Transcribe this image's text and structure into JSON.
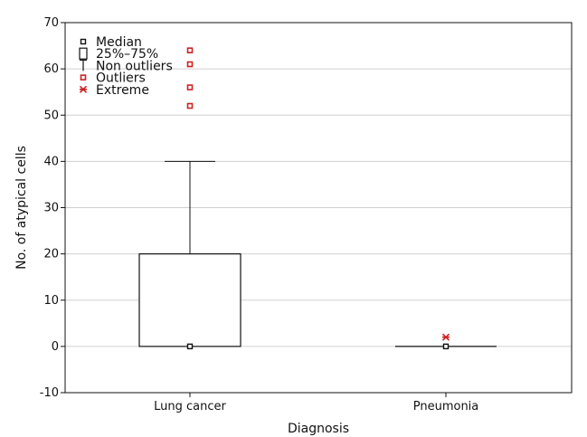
{
  "chart_data": {
    "type": "box",
    "xlabel": "Diagnosis",
    "ylabel": "No. of atypical cells",
    "ylim": [
      -10,
      70
    ],
    "yticks": [
      -10,
      0,
      10,
      20,
      30,
      40,
      50,
      60,
      70
    ],
    "grid": true,
    "legend": {
      "placement": "top-left",
      "items": [
        {
          "symbol": "median",
          "label": "Median"
        },
        {
          "symbol": "box",
          "label": "25%–75%"
        },
        {
          "symbol": "whisker",
          "label": "Non outliers"
        },
        {
          "symbol": "outlier",
          "label": "Outliers"
        },
        {
          "symbol": "extreme",
          "label": "Extreme"
        }
      ]
    },
    "categories": [
      "Lung cancer",
      "Pneumonia"
    ],
    "boxes": [
      {
        "category": "Lung cancer",
        "median": 0,
        "q1": 0,
        "q3": 20,
        "whisker_low": 0,
        "whisker_high": 40,
        "outliers": [
          52,
          56,
          61,
          64
        ],
        "extremes": []
      },
      {
        "category": "Pneumonia",
        "median": 0,
        "q1": 0,
        "q3": 0,
        "whisker_low": 0,
        "whisker_high": 0,
        "outliers": [],
        "extremes": [
          2
        ]
      }
    ],
    "colors": {
      "outlier": "#cc2222",
      "line": "#111111",
      "grid": "#d0d0d0"
    }
  }
}
